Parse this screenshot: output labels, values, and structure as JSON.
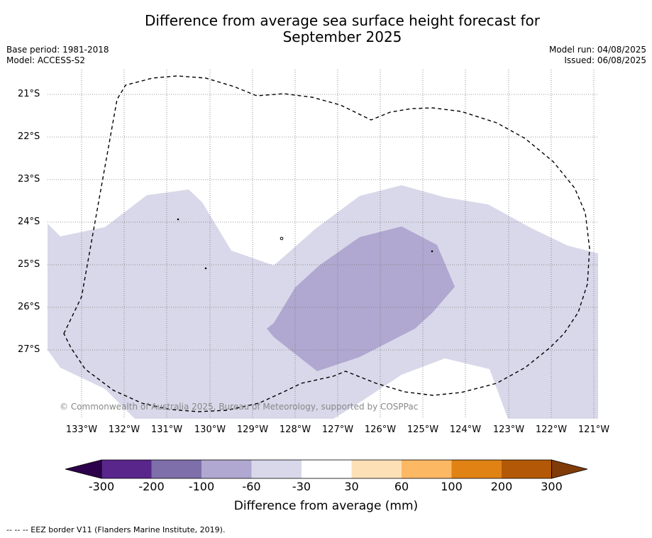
{
  "title_line1": "Difference from average sea surface height forecast for",
  "title_line2": "September 2025",
  "meta_left": {
    "base_period": "Base period: 1981-2018",
    "model": "Model: ACCESS-S2"
  },
  "meta_right": {
    "model_run": "Model run: 04/08/2025",
    "issued": "Issued: 06/08/2025"
  },
  "latitude_labels": [
    "21°S",
    "22°S",
    "23°S",
    "24°S",
    "25°S",
    "26°S",
    "27°S"
  ],
  "longitude_labels": [
    "133°W",
    "132°W",
    "131°W",
    "130°W",
    "129°W",
    "128°W",
    "127°W",
    "126°W",
    "125°W",
    "124°W",
    "123°W",
    "122°W",
    "121°W"
  ],
  "copyright": "© Commonwealth of Australia 2025, Bureau of Meteorology, supported by COSPPac",
  "colorbar": {
    "label": "Difference from average (mm)",
    "tick_labels": [
      "-300",
      "-200",
      "-100",
      "-60",
      "-30",
      "30",
      "60",
      "100",
      "200",
      "300"
    ],
    "colors": [
      "#59268c",
      "#7e6eaa",
      "#b0a8d0",
      "#d8d8ea",
      "#ffffff",
      "#fee0b6",
      "#fdb863",
      "#e08214",
      "#b35806"
    ],
    "extend_low_color": "#2d004b",
    "extend_high_color": "#7f3b08"
  },
  "fill_colors": {
    "-60 to -30": "#d8d8ea",
    "-100 to -60": "#b0a8d0"
  },
  "footnote": "--  --  -- EEZ border V11 (Flanders Marine Institute, 2019)."
}
